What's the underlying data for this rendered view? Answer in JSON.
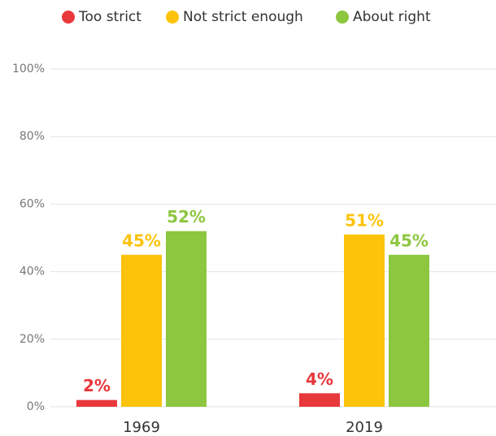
{
  "chart_data": {
    "type": "bar",
    "categories": [
      "1969",
      "2019"
    ],
    "series": [
      {
        "name": "Too strict",
        "color": "#e8383b",
        "values": [
          2,
          4
        ],
        "value_labels": [
          "2%",
          "4%"
        ]
      },
      {
        "name": "Not strict enough",
        "color": "#fcc30b",
        "values": [
          45,
          51
        ],
        "value_labels": [
          "45%",
          "51%"
        ]
      },
      {
        "name": "About right",
        "color": "#8dc63f",
        "values": [
          52,
          45
        ],
        "value_labels": [
          "52%",
          "45%"
        ]
      }
    ],
    "ylim": [
      0,
      100
    ],
    "yticks": [
      {
        "value": 0,
        "label": "0%"
      },
      {
        "value": 20,
        "label": "20%"
      },
      {
        "value": 40,
        "label": "40%"
      },
      {
        "value": 60,
        "label": "60%"
      },
      {
        "value": 80,
        "label": "80%"
      },
      {
        "value": 100,
        "label": "100%"
      }
    ],
    "grid": true,
    "legend": "top"
  }
}
